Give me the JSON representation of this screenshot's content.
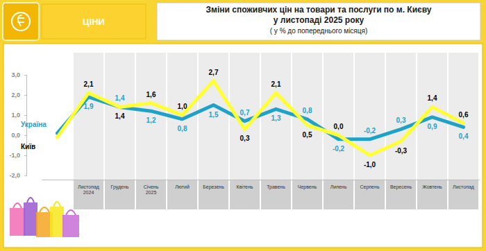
{
  "chart_data": {
    "type": "line",
    "title": [
      "Зміни споживчих цін на товари та послуги по м. Києву",
      "у листопаді 2025 року"
    ],
    "subtitle": "( у  % до попереднього місяця)",
    "annotations": [
      "ЦІНИ"
    ],
    "categories": [
      null,
      "Листопад 2024",
      "Грудень",
      "Січень 2025",
      "Лютий",
      "Березень",
      "Квітень",
      "Травень",
      "Червень",
      "Липень",
      "Серпень",
      "Вересень",
      "Жовтень",
      "Листопад"
    ],
    "series": [
      {
        "name": "Україна",
        "color": "#1fa2c8",
        "values": [
          0.1,
          1.9,
          1.4,
          1.2,
          0.8,
          1.5,
          0.7,
          1.3,
          0.8,
          -0.2,
          -0.2,
          0.3,
          0.9,
          0.4
        ],
        "value_labels": [
          null,
          "1,9",
          "1,4",
          "1,2",
          "0,8",
          "1,5",
          "0,7",
          "1,3",
          "0,8",
          "-0,2",
          "-0,2",
          "0,3",
          "0,9",
          "0,4"
        ]
      },
      {
        "name": "Київ",
        "color": "#ffff33",
        "values": [
          -0.1,
          2.1,
          1.4,
          1.6,
          1.0,
          2.7,
          0.3,
          2.1,
          0.5,
          0.0,
          -1.0,
          -0.3,
          1.4,
          0.6
        ],
        "value_labels": [
          null,
          "2,1",
          "1,4",
          "1,6",
          "1,0",
          "2,7",
          "0,3",
          "2,1",
          "0,5",
          "0,0",
          "-1,0",
          "-0,3",
          "1,4",
          "0,6"
        ]
      }
    ],
    "ylim": [
      -2,
      3
    ],
    "yticks": [
      {
        "value": -2,
        "label": "-2,0"
      },
      {
        "value": -1,
        "label": "-1,0"
      },
      {
        "value": 0,
        "label": "0,0"
      },
      {
        "value": 1,
        "label": "1,0"
      },
      {
        "value": 2,
        "label": "2,0"
      },
      {
        "value": 3,
        "label": "3,0"
      }
    ],
    "grid": false,
    "legend": "left",
    "data_labels": true
  }
}
